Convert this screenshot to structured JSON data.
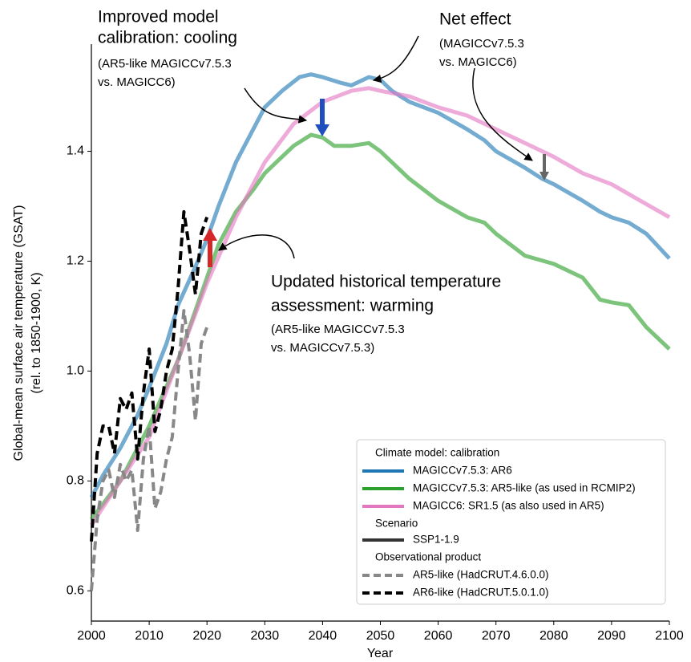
{
  "chart_data": {
    "type": "line",
    "xlabel": "Year",
    "ylabel": [
      "Global-mean surface air temperature (GSAT)",
      "(rel. to 1850-1900, K)"
    ],
    "xlim": [
      2000,
      2100
    ],
    "ylim": [
      0.545,
      1.595
    ],
    "xticks": [
      2000,
      2010,
      2020,
      2030,
      2040,
      2050,
      2060,
      2070,
      2080,
      2090,
      2100
    ],
    "yticks": [
      0.6,
      0.8,
      {
        "value": 1,
        "label": "1.0"
      },
      1.2,
      1.4
    ],
    "series": [
      {
        "name": "MAGICCv7.5.3: AR6",
        "color": "#1f77b4",
        "style": "solid",
        "x": [
          2000,
          2002,
          2005,
          2008,
          2010,
          2013,
          2015,
          2018,
          2020,
          2022,
          2025,
          2028,
          2030,
          2033,
          2036,
          2038,
          2040,
          2043,
          2045,
          2048,
          2050,
          2052,
          2055,
          2060,
          2065,
          2068,
          2070,
          2075,
          2078,
          2080,
          2085,
          2088,
          2090,
          2093,
          2096,
          2100
        ],
        "values": [
          0.77,
          0.81,
          0.86,
          0.92,
          0.97,
          1.05,
          1.12,
          1.19,
          1.24,
          1.3,
          1.38,
          1.44,
          1.48,
          1.51,
          1.535,
          1.54,
          1.535,
          1.525,
          1.52,
          1.535,
          1.53,
          1.51,
          1.49,
          1.47,
          1.44,
          1.42,
          1.4,
          1.37,
          1.35,
          1.34,
          1.31,
          1.29,
          1.28,
          1.27,
          1.25,
          1.205
        ]
      },
      {
        "name": "MAGICCv7.5.3: AR5-like (as used in RCMIP2)",
        "color": "#2ca02c",
        "style": "solid",
        "x": [
          2000,
          2005,
          2010,
          2015,
          2020,
          2022,
          2025,
          2028,
          2030,
          2032,
          2035,
          2038,
          2040,
          2042,
          2045,
          2048,
          2050,
          2055,
          2060,
          2065,
          2068,
          2070,
          2075,
          2080,
          2085,
          2088,
          2090,
          2093,
          2096,
          2100
        ],
        "values": [
          0.73,
          0.8,
          0.9,
          1.02,
          1.17,
          1.23,
          1.29,
          1.33,
          1.36,
          1.38,
          1.41,
          1.43,
          1.425,
          1.41,
          1.41,
          1.415,
          1.4,
          1.35,
          1.31,
          1.28,
          1.27,
          1.25,
          1.21,
          1.195,
          1.17,
          1.13,
          1.125,
          1.12,
          1.08,
          1.04
        ]
      },
      {
        "name": "MAGICC6: SR1.5 (as also used in AR5)",
        "color": "#e377c2",
        "style": "solid",
        "x": [
          2000,
          2005,
          2010,
          2015,
          2020,
          2025,
          2030,
          2035,
          2040,
          2045,
          2048,
          2050,
          2055,
          2060,
          2065,
          2070,
          2075,
          2080,
          2085,
          2090,
          2095,
          2100
        ],
        "values": [
          0.72,
          0.8,
          0.88,
          1.02,
          1.16,
          1.28,
          1.38,
          1.45,
          1.49,
          1.51,
          1.515,
          1.51,
          1.5,
          1.48,
          1.465,
          1.44,
          1.415,
          1.39,
          1.36,
          1.34,
          1.31,
          1.28
        ]
      },
      {
        "name": "AR5-like (HadCRUT.4.6.0.0)",
        "color": "#888888",
        "style": "dashed",
        "x": [
          2000,
          2001,
          2002,
          2003,
          2004,
          2005,
          2006,
          2007,
          2008,
          2009,
          2010,
          2011,
          2012,
          2013,
          2014,
          2015,
          2016,
          2017,
          2018,
          2019,
          2020
        ],
        "values": [
          0.6,
          0.73,
          0.8,
          0.82,
          0.77,
          0.83,
          0.8,
          0.82,
          0.71,
          0.84,
          0.9,
          0.75,
          0.78,
          0.84,
          0.88,
          1.0,
          1.11,
          1.03,
          0.91,
          1.05,
          1.08
        ]
      },
      {
        "name": "AR6-like (HadCRUT.5.0.1.0)",
        "color": "#000000",
        "style": "dashed",
        "x": [
          2000,
          2001,
          2002,
          2003,
          2004,
          2005,
          2006,
          2007,
          2008,
          2009,
          2010,
          2011,
          2012,
          2013,
          2014,
          2015,
          2016,
          2017,
          2018,
          2019,
          2020
        ],
        "values": [
          0.69,
          0.85,
          0.9,
          0.9,
          0.85,
          0.95,
          0.93,
          0.96,
          0.84,
          0.96,
          1.04,
          0.89,
          0.93,
          1.0,
          1.04,
          1.15,
          1.29,
          1.22,
          1.14,
          1.25,
          1.28
        ]
      }
    ],
    "legend": {
      "model_title": "Climate model: calibration",
      "scenario_title": "Scenario",
      "scenario": "SSP1-1.9",
      "obs_title": "Observational product"
    },
    "annotations": [
      {
        "title_lines": [
          "Improved model",
          "calibration: cooling"
        ],
        "note_lines": [
          "(AR5-like MAGICCv7.5.3",
          "vs. MAGICC6)"
        ]
      },
      {
        "title_lines": [
          "Net effect"
        ],
        "note_lines": [
          "(MAGICCv7.5.3",
          "vs. MAGICC6)"
        ]
      },
      {
        "title_lines": [
          "Updated historical temperature",
          "assessment: warming"
        ],
        "note_lines": [
          "(AR5-like MAGICCv7.5.3",
          "vs. MAGICCv7.5.3)"
        ]
      }
    ]
  }
}
